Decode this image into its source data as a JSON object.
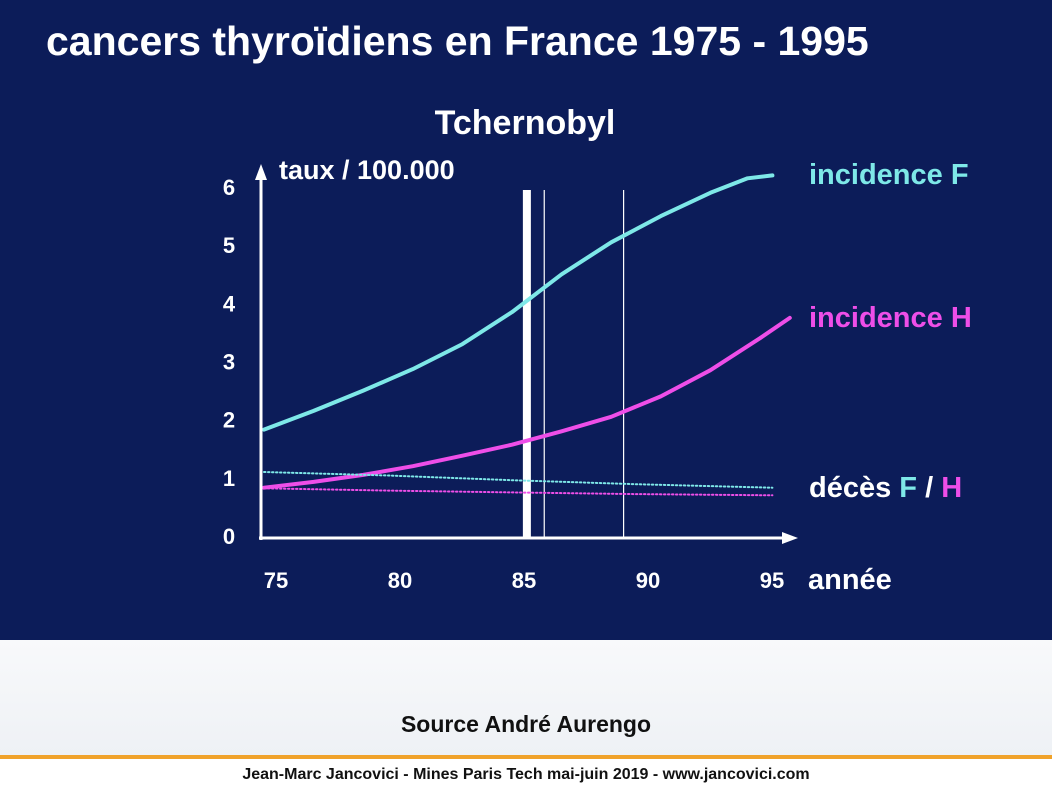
{
  "slide": {
    "title": "cancers thyroïdiens en France 1975 - 1995",
    "source": "Source André Aurengo",
    "credit": "Jean-Marc Jancovici - Mines Paris Tech mai-juin 2019 - www.jancovici.com"
  },
  "colors": {
    "background": "#0c1c59",
    "incidence_f": "#7ee8e8",
    "incidence_h": "#ee4ee8",
    "text": "#ffffff",
    "accent_rule": "#f0a22a"
  },
  "chart_data": {
    "type": "line",
    "title": "",
    "xlabel": "année",
    "ylabel": "taux / 100.000",
    "xlim": [
      75,
      96
    ],
    "ylim": [
      0,
      6
    ],
    "x_ticks": [
      "75",
      "80",
      "85",
      "90",
      "95"
    ],
    "y_ticks": [
      "0",
      "1",
      "2",
      "3",
      "4",
      "5",
      "6"
    ],
    "grid": false,
    "annotations": [
      {
        "label": "Tchernobyl",
        "x": 85.6,
        "style": "thick-vertical-line"
      },
      {
        "label": "",
        "x": 86.3,
        "style": "thin-vertical-line"
      },
      {
        "label": "",
        "x": 89.5,
        "style": "thin-vertical-line"
      }
    ],
    "deces_label": {
      "prefix": "décès",
      "f": "F",
      "sep": "/",
      "h": "H"
    },
    "series": [
      {
        "name": "incidence F",
        "style": "solid",
        "x": [
          75,
          77,
          79,
          81,
          83,
          85,
          87,
          89,
          91,
          93,
          94.5,
          95.5
        ],
        "y": [
          1.83,
          2.15,
          2.5,
          2.87,
          3.3,
          3.85,
          4.5,
          5.05,
          5.5,
          5.9,
          6.15,
          6.2
        ]
      },
      {
        "name": "incidence H",
        "style": "solid",
        "x": [
          75,
          77,
          79,
          81,
          83,
          85,
          87,
          89,
          91,
          93,
          95,
          96.2
        ],
        "y": [
          0.83,
          0.93,
          1.05,
          1.2,
          1.38,
          1.57,
          1.8,
          2.05,
          2.4,
          2.85,
          3.4,
          3.75
        ]
      },
      {
        "name": "décès F",
        "style": "dotted",
        "x": [
          75,
          80,
          85,
          90,
          95.5
        ],
        "y": [
          1.1,
          1.04,
          0.96,
          0.89,
          0.83
        ]
      },
      {
        "name": "décès H",
        "style": "dotted",
        "x": [
          75,
          80,
          85,
          90,
          95.5
        ],
        "y": [
          0.82,
          0.78,
          0.75,
          0.72,
          0.7
        ]
      }
    ]
  }
}
